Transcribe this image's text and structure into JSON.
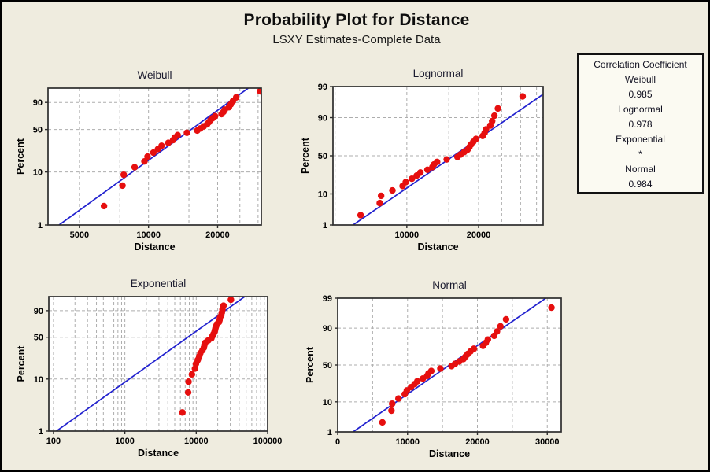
{
  "chart_data": {
    "type": "scatter",
    "subtype": "probability-plot-matrix",
    "title": "Probability Plot for Distance",
    "subtitle": "LSXY Estimates-Complete Data",
    "xlabel": "Distance",
    "ylabel": "Percent",
    "grid": true,
    "colors": {
      "point": "#E60F0F",
      "line": "#2222CF",
      "grid": "#ADADAD",
      "frame": "#2D2D2D",
      "background": "#EFECDF",
      "plot_bg": "#FFFFFF",
      "panel_title": "#1A1A2E",
      "text": "#000000"
    },
    "points": {
      "distance": [
        6400,
        7700,
        7800,
        8700,
        9600,
        9900,
        10500,
        11000,
        11400,
        12200,
        12800,
        13000,
        13400,
        14700,
        16300,
        16800,
        17400,
        18000,
        18300,
        18600,
        19000,
        19500,
        20800,
        21200,
        21500,
        22400,
        22800,
        23300,
        24100,
        30600
      ],
      "percent": [
        2.3,
        5.6,
        8.9,
        12.2,
        15.5,
        18.8,
        22.0,
        25.3,
        28.6,
        31.9,
        35.2,
        38.5,
        41.8,
        45.1,
        48.4,
        51.6,
        54.9,
        58.2,
        61.5,
        64.8,
        68.1,
        71.4,
        74.7,
        78.0,
        81.2,
        84.5,
        87.8,
        91.1,
        94.4,
        97.7
      ]
    },
    "panels": [
      {
        "id": "weibull",
        "title": "Weibull",
        "xscale": "log",
        "yscale": "weibull",
        "xlim": [
          3650,
          31000
        ],
        "ylim": [
          1,
          98.7
        ],
        "xticks": [
          [
            5000,
            "5000"
          ],
          [
            10000,
            "10000"
          ],
          [
            20000,
            "20000"
          ]
        ],
        "xgrid": [
          5000,
          7500,
          10000,
          15000,
          20000,
          25000,
          30000
        ],
        "yticks": [
          [
            1,
            "1"
          ],
          [
            10,
            "10"
          ],
          [
            50,
            "50"
          ],
          [
            90,
            "90"
          ]
        ],
        "line": {
          "d": [
            4080,
            27200
          ],
          "p": [
            1,
            98.7
          ]
        }
      },
      {
        "id": "lognormal",
        "title": "Lognormal",
        "xscale": "log",
        "yscale": "normal",
        "xlim": [
          4900,
          37300
        ],
        "ylim": [
          1,
          99
        ],
        "xticks": [
          [
            10000,
            "10000"
          ],
          [
            20000,
            "20000"
          ]
        ],
        "xgrid": [
          5000,
          10000,
          15000,
          20000,
          25000,
          30000,
          35000
        ],
        "yticks": [
          [
            1,
            "1"
          ],
          [
            10,
            "10"
          ],
          [
            50,
            "50"
          ],
          [
            90,
            "90"
          ],
          [
            99,
            "99"
          ]
        ],
        "line": {
          "d": [
            5950,
            37300
          ],
          "p": [
            1,
            98.06
          ]
        }
      },
      {
        "id": "exponential",
        "title": "Exponential",
        "xscale": "log",
        "yscale": "weibull",
        "xlim": [
          86,
          100000
        ],
        "ylim": [
          1,
          98.7
        ],
        "xticks": [
          [
            100,
            "100"
          ],
          [
            1000,
            "1000"
          ],
          [
            10000,
            "10000"
          ],
          [
            100000,
            "100000"
          ]
        ],
        "xgrid": [
          100,
          200,
          300,
          400,
          500,
          600,
          700,
          800,
          900,
          1000,
          2000,
          3000,
          4000,
          5000,
          6000,
          7000,
          8000,
          9000,
          10000,
          20000,
          30000,
          40000,
          50000,
          60000,
          70000,
          80000,
          90000,
          100000
        ],
        "yticks": [
          [
            1,
            "1"
          ],
          [
            10,
            "10"
          ],
          [
            50,
            "50"
          ],
          [
            90,
            "90"
          ]
        ],
        "line": {
          "d": [
            110,
            47800
          ],
          "p": [
            1,
            98.7
          ]
        }
      },
      {
        "id": "normal",
        "title": "Normal",
        "xscale": "linear",
        "yscale": "normal",
        "xlim": [
          0,
          32000
        ],
        "ylim": [
          1,
          99
        ],
        "xticks": [
          [
            0,
            "0"
          ],
          [
            10000,
            "10000"
          ],
          [
            20000,
            "20000"
          ],
          [
            30000,
            "30000"
          ]
        ],
        "xgrid": [
          5000,
          10000,
          15000,
          20000,
          25000,
          30000
        ],
        "yticks": [
          [
            1,
            "1"
          ],
          [
            10,
            "10"
          ],
          [
            50,
            "50"
          ],
          [
            90,
            "90"
          ],
          [
            99,
            "99"
          ]
        ],
        "line": {
          "d": [
            2206,
            29790
          ],
          "p": [
            1,
            99
          ]
        }
      }
    ],
    "legend": {
      "title": "Correlation Coefficient",
      "entries": [
        {
          "name": "Weibull",
          "value": "0.985"
        },
        {
          "name": "Lognormal",
          "value": "0.978"
        },
        {
          "name": "Exponential",
          "value": "*"
        },
        {
          "name": "Normal",
          "value": "0.984"
        }
      ]
    }
  }
}
